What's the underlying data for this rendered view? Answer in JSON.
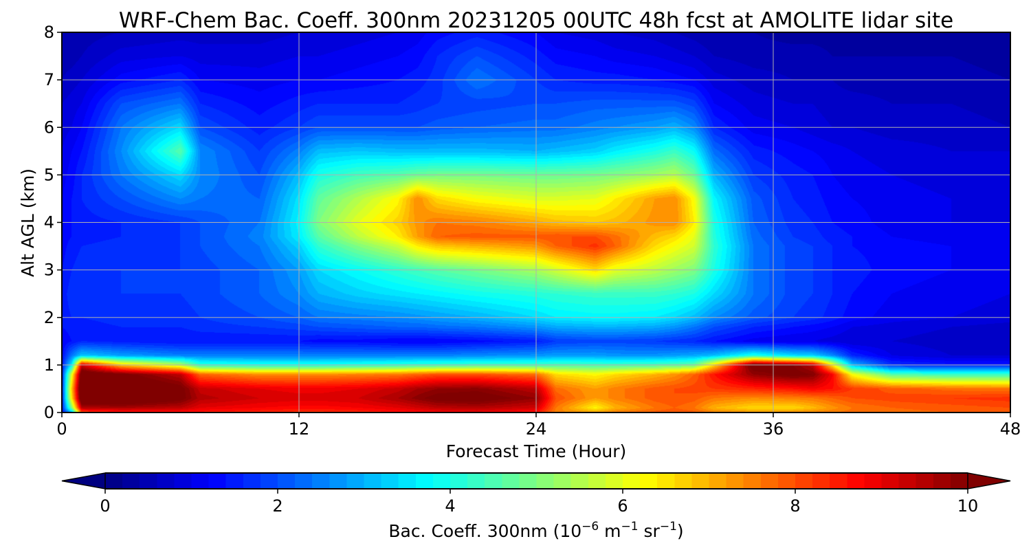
{
  "chart_data": {
    "type": "heatmap",
    "title": "WRF-Chem Bac. Coeff. 300nm  20231205 00UTC 48h fcst at AMOLITE lidar site",
    "xlabel": "Forecast Time (Hour)",
    "ylabel": "Alt AGL (km)",
    "xlim": [
      0,
      48
    ],
    "ylim": [
      0,
      8
    ],
    "x_ticks": [
      "0",
      "12",
      "24",
      "36",
      "48"
    ],
    "y_ticks": [
      "0",
      "1",
      "2",
      "3",
      "4",
      "5",
      "6",
      "7",
      "8"
    ],
    "grid": true,
    "colorbar": {
      "label_prefix": "Bac. Coeff. 300nm  (10",
      "label_exp1": "−6",
      "label_mid": " m",
      "label_exp2": "−1",
      "label_mid2": " sr",
      "label_exp3": "−1",
      "label_suffix": ")",
      "range": [
        0,
        10
      ],
      "ticks": [
        "0",
        "2",
        "4",
        "6",
        "8",
        "10"
      ],
      "extend": "both",
      "colormap": "jet",
      "orientation": "horizontal"
    },
    "x_hours": [
      0,
      0.5,
      1,
      3,
      6,
      7,
      10,
      12,
      13,
      15,
      17,
      18,
      19,
      21,
      24,
      25,
      27,
      28,
      30,
      31,
      32,
      33,
      35,
      37,
      38,
      39,
      40,
      42,
      45,
      48
    ],
    "altitudes_km": [
      0,
      0.1,
      0.3,
      0.5,
      0.8,
      1.0,
      1.2,
      1.5,
      1.8,
      2.0,
      2.5,
      3.0,
      3.5,
      3.7,
      4.0,
      4.5,
      5.0,
      5.5,
      6.0,
      6.5,
      7.0,
      7.5,
      8.0
    ],
    "values": [
      [
        1.3,
        3.0,
        8.0,
        8.5,
        8.6,
        8.5,
        8.4,
        8.3,
        8.3,
        8.4,
        8.6,
        8.7,
        8.8,
        8.9,
        8.6,
        7.5,
        7.2,
        7.6,
        7.9,
        8.0,
        7.9,
        7.5,
        7.3,
        7.4,
        7.5,
        7.6,
        7.7,
        7.7,
        7.8,
        7.8
      ],
      [
        1.4,
        5.0,
        9.5,
        9.6,
        9.4,
        9.0,
        8.8,
        8.7,
        8.7,
        8.8,
        9.0,
        9.2,
        9.4,
        9.5,
        9.2,
        7.6,
        6.3,
        7.0,
        7.6,
        7.8,
        7.6,
        7.0,
        6.6,
        6.6,
        6.9,
        7.3,
        7.6,
        7.8,
        7.9,
        8.0
      ],
      [
        1.5,
        6.5,
        10.8,
        10.8,
        10.2,
        9.5,
        9.2,
        9.1,
        9.1,
        9.2,
        9.6,
        9.9,
        10.2,
        10.3,
        9.8,
        8.0,
        7.2,
        7.5,
        7.9,
        8.0,
        7.9,
        7.6,
        7.4,
        7.5,
        7.6,
        7.8,
        8.0,
        8.1,
        8.2,
        8.3
      ],
      [
        1.5,
        6.8,
        11.0,
        10.8,
        10.2,
        9.3,
        9.0,
        8.9,
        8.9,
        9.0,
        9.3,
        9.6,
        9.8,
        9.9,
        9.4,
        7.7,
        7.2,
        7.5,
        7.9,
        8.0,
        8.1,
        8.2,
        8.4,
        8.6,
        8.8,
        8.6,
        8.2,
        7.9,
        7.7,
        7.6
      ],
      [
        1.5,
        6.0,
        10.6,
        10.2,
        9.4,
        7.8,
        7.4,
        7.4,
        7.4,
        7.5,
        7.6,
        7.8,
        8.0,
        8.0,
        7.7,
        6.6,
        6.3,
        6.6,
        7.0,
        7.3,
        7.8,
        8.6,
        9.8,
        10.2,
        10.0,
        8.8,
        6.2,
        4.6,
        4.3,
        4.3
      ],
      [
        1.4,
        3.6,
        9.2,
        6.8,
        5.6,
        4.2,
        4.0,
        4.0,
        4.0,
        4.1,
        4.2,
        4.3,
        4.3,
        4.4,
        4.4,
        4.5,
        4.4,
        4.4,
        4.5,
        4.6,
        4.8,
        6.6,
        10.4,
        10.0,
        9.4,
        6.4,
        3.1,
        1.7,
        1.5,
        1.5
      ],
      [
        1.3,
        2.4,
        3.2,
        2.8,
        2.5,
        2.5,
        2.5,
        2.5,
        2.5,
        2.5,
        2.5,
        2.5,
        2.5,
        2.6,
        2.7,
        2.8,
        2.8,
        2.7,
        2.7,
        2.8,
        2.9,
        3.1,
        4.0,
        3.4,
        3.3,
        2.6,
        1.6,
        1.0,
        0.8,
        0.8
      ],
      [
        1.2,
        1.4,
        1.6,
        1.5,
        1.4,
        1.4,
        1.4,
        1.4,
        1.3,
        1.3,
        1.2,
        1.2,
        1.2,
        1.3,
        1.5,
        1.8,
        1.9,
        1.9,
        1.8,
        1.7,
        1.6,
        1.4,
        1.1,
        1.0,
        1.0,
        0.9,
        0.8,
        0.8,
        0.7,
        0.7
      ],
      [
        1.4,
        1.5,
        1.5,
        1.6,
        1.6,
        1.7,
        1.8,
        1.9,
        2.0,
        2.1,
        2.2,
        2.2,
        2.3,
        2.4,
        2.7,
        2.9,
        3.0,
        3.0,
        2.9,
        2.7,
        2.4,
        2.0,
        1.6,
        1.4,
        1.3,
        1.2,
        1.0,
        0.9,
        0.8,
        0.7
      ],
      [
        1.5,
        1.6,
        1.6,
        1.7,
        1.7,
        1.8,
        2.0,
        2.2,
        2.4,
        2.5,
        2.6,
        2.7,
        2.8,
        3.0,
        3.4,
        3.6,
        3.7,
        3.7,
        3.6,
        3.4,
        3.1,
        2.6,
        2.1,
        1.8,
        1.7,
        1.5,
        1.3,
        1.1,
        1.0,
        0.9
      ],
      [
        1.5,
        1.7,
        1.7,
        1.8,
        1.8,
        1.9,
        2.2,
        2.6,
        3.0,
        3.3,
        3.5,
        3.6,
        3.7,
        3.9,
        4.1,
        4.2,
        4.3,
        4.3,
        4.3,
        4.2,
        4.0,
        3.4,
        2.4,
        1.9,
        1.8,
        1.6,
        1.4,
        1.2,
        1.1,
        1.0
      ],
      [
        1.4,
        1.6,
        1.7,
        1.8,
        1.8,
        1.9,
        2.2,
        2.8,
        3.4,
        3.8,
        4.2,
        4.4,
        4.6,
        4.9,
        5.4,
        5.8,
        6.6,
        6.0,
        5.6,
        5.3,
        5.0,
        4.0,
        2.4,
        1.9,
        1.8,
        1.6,
        1.5,
        1.3,
        1.2,
        1.1
      ],
      [
        1.3,
        1.5,
        1.6,
        1.7,
        1.8,
        2.0,
        2.4,
        3.3,
        4.2,
        5.0,
        5.7,
        6.4,
        6.8,
        7.0,
        7.3,
        7.8,
        8.3,
        7.8,
        6.6,
        6.2,
        5.8,
        4.2,
        2.4,
        1.9,
        1.8,
        1.6,
        1.4,
        1.3,
        1.2,
        1.1
      ],
      [
        1.3,
        1.4,
        1.5,
        1.6,
        1.8,
        2.0,
        2.5,
        3.6,
        4.6,
        5.6,
        6.4,
        7.2,
        7.8,
        7.9,
        7.9,
        8.0,
        8.0,
        7.7,
        6.9,
        6.6,
        6.0,
        4.1,
        2.3,
        1.8,
        1.7,
        1.5,
        1.4,
        1.2,
        1.1,
        1.0
      ],
      [
        1.2,
        1.4,
        1.5,
        1.6,
        1.8,
        2.0,
        2.4,
        3.7,
        5.0,
        6.0,
        6.7,
        7.3,
        7.6,
        7.5,
        7.1,
        6.9,
        6.8,
        6.9,
        7.3,
        7.4,
        6.4,
        4.0,
        2.2,
        1.7,
        1.6,
        1.4,
        1.3,
        1.1,
        1.0,
        1.0
      ],
      [
        1.2,
        1.4,
        1.6,
        2.0,
        2.6,
        2.4,
        2.2,
        3.5,
        4.7,
        5.5,
        6.3,
        7.4,
        6.6,
        6.2,
        5.9,
        5.9,
        6.0,
        6.4,
        7.2,
        7.4,
        6.2,
        3.7,
        2.1,
        1.6,
        1.5,
        1.3,
        1.2,
        1.1,
        1.0,
        0.9
      ],
      [
        1.1,
        1.3,
        1.6,
        2.4,
        3.4,
        2.6,
        2.0,
        3.1,
        4.0,
        4.4,
        4.6,
        4.8,
        4.9,
        4.9,
        4.8,
        4.8,
        4.9,
        5.0,
        5.3,
        5.5,
        4.8,
        3.0,
        1.8,
        1.5,
        1.4,
        1.2,
        1.1,
        1.0,
        0.9,
        0.9
      ],
      [
        1.0,
        1.2,
        1.4,
        2.6,
        4.6,
        2.6,
        1.8,
        2.5,
        3.1,
        3.2,
        3.1,
        3.1,
        3.1,
        3.1,
        3.0,
        3.1,
        3.3,
        3.6,
        4.0,
        4.3,
        3.8,
        2.3,
        1.5,
        1.3,
        1.2,
        1.1,
        1.0,
        0.9,
        0.8,
        0.8
      ],
      [
        0.9,
        1.0,
        1.2,
        2.4,
        3.4,
        2.0,
        1.5,
        1.8,
        2.0,
        2.0,
        2.0,
        2.0,
        2.1,
        2.2,
        2.3,
        2.3,
        2.5,
        2.6,
        2.8,
        3.0,
        2.6,
        1.6,
        1.1,
        1.0,
        0.9,
        0.8,
        0.8,
        0.7,
        0.7,
        0.6
      ],
      [
        0.8,
        0.9,
        1.0,
        2.0,
        2.4,
        1.6,
        1.3,
        1.5,
        1.6,
        1.6,
        1.6,
        1.7,
        1.8,
        1.9,
        2.0,
        2.0,
        2.1,
        2.1,
        2.1,
        2.1,
        1.9,
        1.2,
        0.9,
        0.8,
        0.8,
        0.7,
        0.7,
        0.6,
        0.6,
        0.5
      ],
      [
        0.6,
        0.7,
        0.8,
        1.3,
        1.6,
        1.2,
        1.1,
        1.2,
        1.2,
        1.3,
        1.4,
        1.5,
        1.7,
        2.4,
        1.8,
        1.6,
        1.5,
        1.5,
        1.4,
        1.3,
        1.2,
        0.9,
        0.7,
        0.6,
        0.6,
        0.6,
        0.5,
        0.5,
        0.5,
        0.4
      ],
      [
        0.5,
        0.5,
        0.6,
        0.9,
        1.0,
        0.9,
        0.9,
        1.0,
        1.0,
        1.1,
        1.2,
        1.3,
        1.6,
        2.0,
        1.5,
        1.3,
        1.2,
        1.1,
        1.0,
        0.9,
        0.8,
        0.6,
        0.5,
        0.5,
        0.5,
        0.4,
        0.4,
        0.4,
        0.4,
        0.3
      ],
      [
        0.4,
        0.4,
        0.5,
        0.6,
        0.7,
        0.7,
        0.7,
        0.8,
        0.8,
        0.9,
        1.0,
        1.1,
        1.3,
        1.5,
        1.2,
        1.0,
        0.9,
        0.8,
        0.7,
        0.6,
        0.5,
        0.4,
        0.4,
        0.3,
        0.3,
        0.3,
        0.3,
        0.3,
        0.3,
        0.3
      ]
    ]
  }
}
